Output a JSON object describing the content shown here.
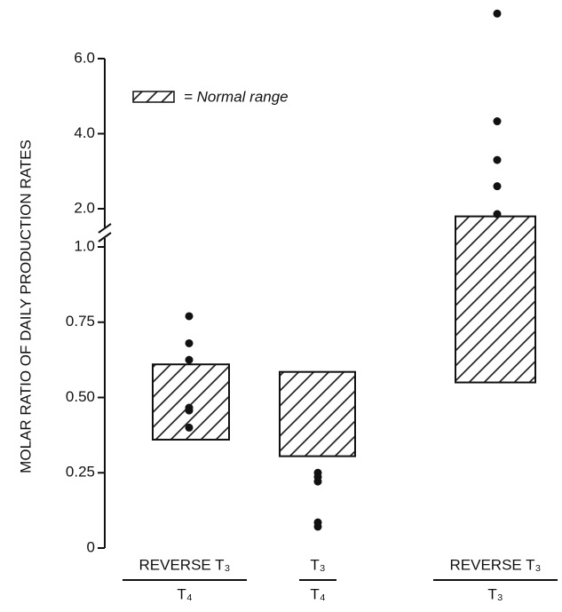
{
  "chart_data": {
    "type": "range-dot",
    "y_label": "MOLAR RATIO OF DAILY PRODUCTION RATES",
    "legend_label": "= Normal range",
    "categories": [
      {
        "numerator": "REVERSE T₃",
        "denominator": "T₄"
      },
      {
        "numerator": "T₃",
        "denominator": "T₄"
      },
      {
        "numerator": "REVERSE T₃",
        "denominator": "T₃"
      }
    ],
    "range_low": [
      0.36,
      0.305,
      0.55
    ],
    "range_high": [
      0.61,
      0.585,
      1.8
    ],
    "points": [
      [
        0.77,
        0.68,
        0.625,
        0.466,
        0.457,
        0.4
      ],
      [
        0.25,
        0.236,
        0.221,
        0.085,
        0.071
      ],
      [
        7.2,
        4.33,
        3.3,
        2.6,
        1.86
      ]
    ],
    "ylim": [
      0,
      6.0
    ],
    "y_break": [
      1.0,
      2.0
    ],
    "yticks": [
      0,
      0.25,
      {
        "value": 0.5,
        "label": "0.50"
      },
      0.75,
      {
        "value": 1.0,
        "label": "1.0"
      },
      {
        "value": 2.0,
        "label": "2.0"
      },
      {
        "value": 4.0,
        "label": "4.0"
      },
      {
        "value": 6.0,
        "label": "6.0"
      }
    ],
    "color": "#111111"
  }
}
